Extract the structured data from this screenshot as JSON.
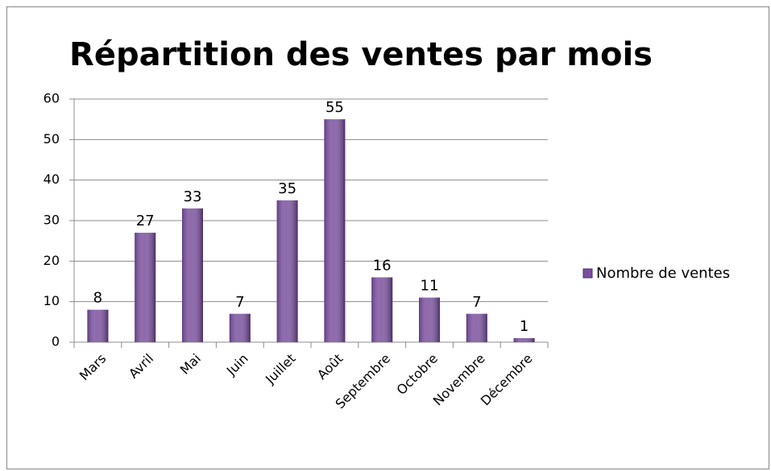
{
  "chart_data": {
    "type": "bar",
    "title": "Répartition des ventes par mois",
    "categories": [
      "Mars",
      "Avril",
      "Mai",
      "Juin",
      "Juillet",
      "Août",
      "Septembre",
      "Octobre",
      "Novembre",
      "Décembre"
    ],
    "series": [
      {
        "name": "Nombre de ventes",
        "color": "#7a4e9e",
        "values": [
          8,
          27,
          33,
          7,
          35,
          55,
          16,
          11,
          7,
          1
        ]
      }
    ],
    "ylim": [
      0,
      60
    ],
    "yticks": [
      0,
      10,
      20,
      30,
      40,
      50,
      60
    ],
    "grid": true,
    "legend": "right",
    "data_labels": true
  }
}
